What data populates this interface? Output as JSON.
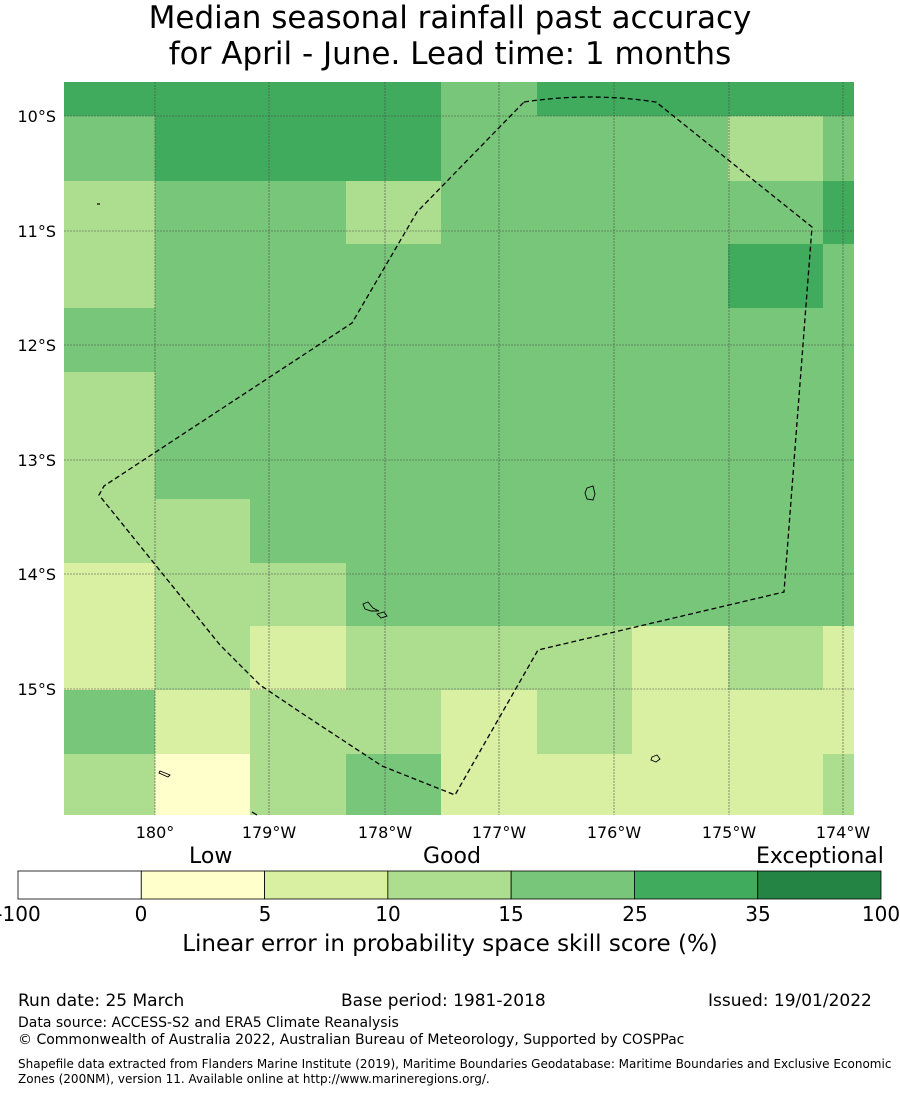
{
  "title": {
    "line1": "Median seasonal rainfall past accuracy",
    "line2": "for April - June. Lead time: 1 months"
  },
  "map": {
    "lat_labels": [
      "10°S",
      "11°S",
      "12°S",
      "13°S",
      "14°S",
      "15°S"
    ],
    "lon_labels": [
      "180°",
      "179°W",
      "178°W",
      "177°W",
      "176°W",
      "175°W",
      "174°W"
    ],
    "palette": {
      "c1": "#ffffcc",
      "c2": "#d9f0a3",
      "c3": "#addd8e",
      "c4": "#78c679",
      "c5": "#41ab5d",
      "c6": "#238443"
    },
    "grid_rows": [
      [
        "c5",
        "c5",
        "c5",
        "c5",
        "c4",
        "c5",
        "c5",
        "c5",
        "c5"
      ],
      [
        "c4",
        "c5",
        "c5",
        "c5",
        "c4",
        "c4",
        "c4",
        "c3",
        "c4"
      ],
      [
        "c3",
        "c4",
        "c4",
        "c3",
        "c4",
        "c4",
        "c4",
        "c4",
        "c5"
      ],
      [
        "c3",
        "c4",
        "c4",
        "c4",
        "c4",
        "c4",
        "c4",
        "c5",
        "c4"
      ],
      [
        "c4",
        "c4",
        "c4",
        "c4",
        "c4",
        "c4",
        "c4",
        "c4",
        "c4"
      ],
      [
        "c3",
        "c4",
        "c4",
        "c4",
        "c4",
        "c4",
        "c4",
        "c4",
        "c4"
      ],
      [
        "c3",
        "c4",
        "c4",
        "c4",
        "c4",
        "c4",
        "c4",
        "c4",
        "c4"
      ],
      [
        "c3",
        "c3",
        "c4",
        "c4",
        "c4",
        "c4",
        "c4",
        "c4",
        "c4"
      ],
      [
        "c2",
        "c3",
        "c3",
        "c4",
        "c4",
        "c4",
        "c4",
        "c4",
        "c4"
      ],
      [
        "c2",
        "c3",
        "c2",
        "c3",
        "c3",
        "c3",
        "c2",
        "c3",
        "c2"
      ],
      [
        "c4",
        "c2",
        "c3",
        "c3",
        "c2",
        "c3",
        "c2",
        "c2",
        "c2"
      ],
      [
        "c3",
        "c1",
        "c3",
        "c4",
        "c2",
        "c2",
        "c2",
        "c2",
        "c3"
      ]
    ]
  },
  "colorbar": {
    "categories": [
      "Low",
      "Good",
      "Exceptional"
    ],
    "ticks": [
      "-100",
      "0",
      "5",
      "10",
      "15",
      "25",
      "35",
      "100"
    ],
    "colors": [
      "#ffffff",
      "#ffffcc",
      "#d9f0a3",
      "#addd8e",
      "#78c679",
      "#41ab5d",
      "#238443"
    ],
    "title": "Linear error in probability space skill score (%)"
  },
  "footer": {
    "run_date": "Run date: 25 March",
    "base_period": "Base period: 1981-2018",
    "issued": "Issued: 19/01/2022",
    "data_source": "Data source: ACCESS-S2 and ERA5 Climate Reanalysis",
    "copyright": "© Commonwealth of Australia 2022, Australian Bureau of Meteorology, Supported by COSPPac",
    "shapefile": "Shapefile data extracted from Flanders Marine Institute (2019), Maritime Boundaries Geodatabase: Maritime Boundaries and Exclusive Economic Zones (200NM), version 11. Available online at http://www.marineregions.org/."
  }
}
